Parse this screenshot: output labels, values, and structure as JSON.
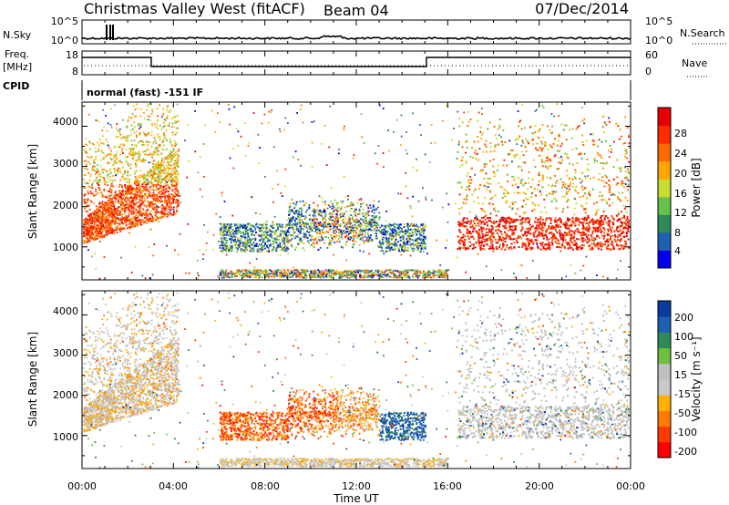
{
  "header": {
    "station": "Christmas Valley West (fitACF)",
    "beam": "Beam 04",
    "date": "07/Dec/2014"
  },
  "noise_panel": {
    "left_label": "N.Sky",
    "left_ticks": [
      "10^5",
      "10^0"
    ],
    "right_label": "N.Search",
    "right_ticks": [
      "10^5",
      "10^0"
    ]
  },
  "freq_panel": {
    "left_label_1": "Freq.",
    "left_label_2": "[MHz]",
    "left_ticks": [
      "18",
      "8"
    ],
    "right_label": "Nave",
    "right_ticks": [
      "60",
      "0"
    ]
  },
  "cpid_panel": {
    "label": "CPID",
    "text": "normal (fast) -151 IF"
  },
  "colors": {
    "power_scale": [
      "#0000ee",
      "#1e5fb4",
      "#2e8b57",
      "#66c24a",
      "#c8dc32",
      "#ffa500",
      "#ff6a00",
      "#ff2a00",
      "#e60000"
    ],
    "velocity_scale": [
      "#ff0000",
      "#ff3a00",
      "#ff7a00",
      "#ffb000",
      "#c8c8c8",
      "#bfbfbf",
      "#70c040",
      "#2e8b57",
      "#1e5fb4",
      "#0a3ca0"
    ]
  },
  "chart_data": [
    {
      "type": "heatmap",
      "panel": "power",
      "ylabel": "Slant Range [km]",
      "yticks": [
        "1000",
        "2000",
        "3000",
        "4000"
      ],
      "colorbar_label": "Power [dB]",
      "colorbar_ticks": [
        "4",
        "8",
        "12",
        "16",
        "20",
        "24",
        "28"
      ],
      "ylim": [
        180,
        4600
      ],
      "zlim": [
        0,
        30
      ]
    },
    {
      "type": "heatmap",
      "panel": "velocity",
      "ylabel": "Slant Range [km]",
      "yticks": [
        "1000",
        "2000",
        "3000",
        "4000"
      ],
      "colorbar_label": "Velocity [m s⁻¹]",
      "colorbar_ticks": [
        "200",
        "100",
        "50",
        "15",
        "-15",
        "-50",
        "-100",
        "-200"
      ],
      "ylim": [
        180,
        4600
      ],
      "zlim": [
        -250,
        250
      ]
    }
  ],
  "time_axis": {
    "label": "Time UT",
    "ticks": [
      "00:00",
      "04:00",
      "08:00",
      "12:00",
      "16:00",
      "20:00",
      "00:00"
    ]
  }
}
